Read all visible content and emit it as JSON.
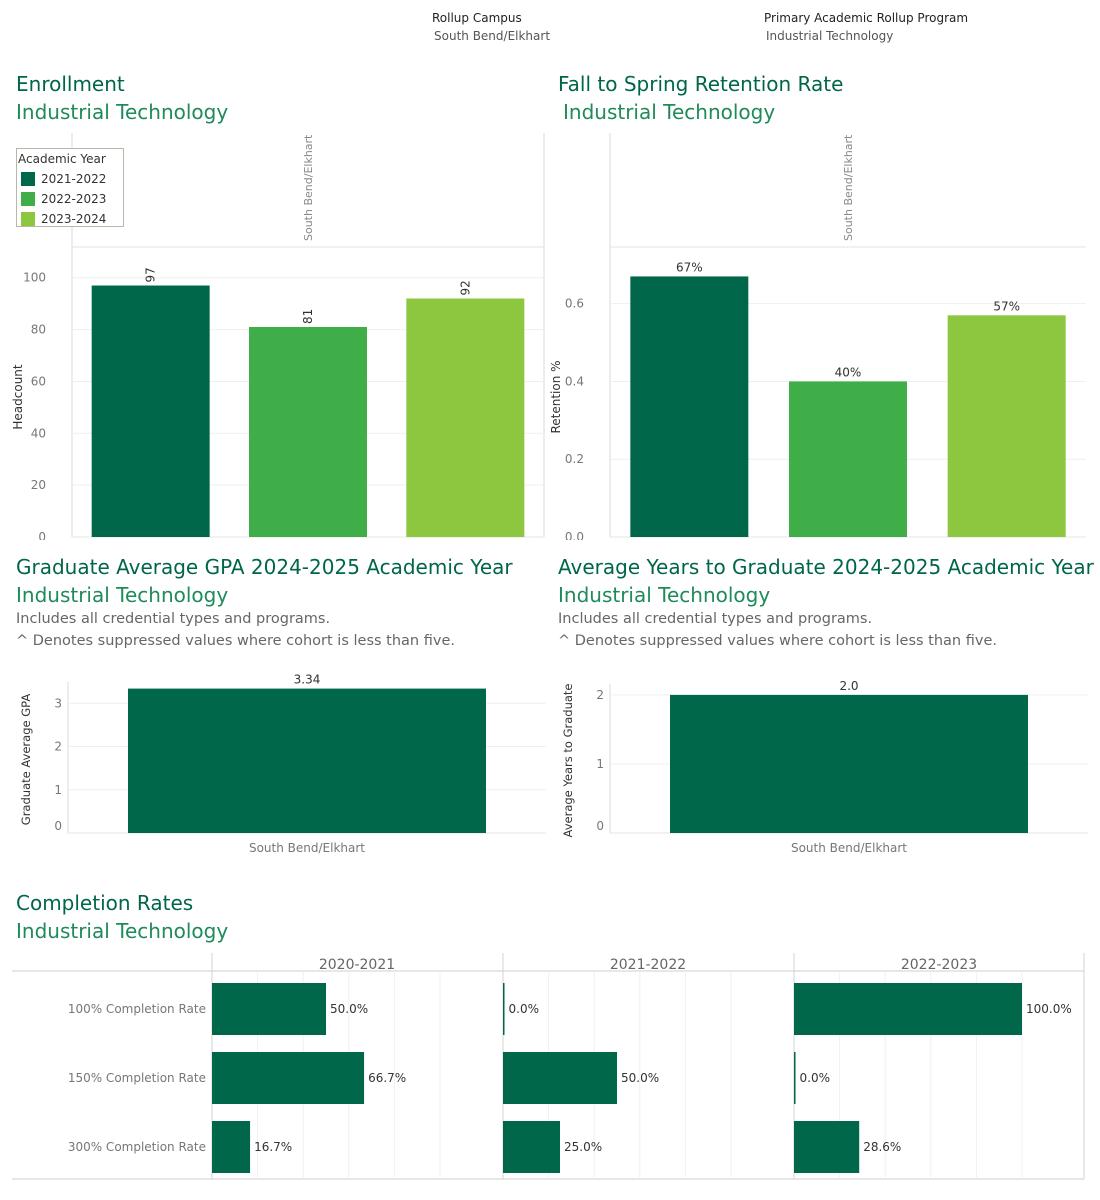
{
  "filters": {
    "campus_label": "Rollup Campus",
    "campus_value": "South Bend/Elkhart",
    "program_label": "Primary Academic Rollup Program",
    "program_value": "Industrial Technology"
  },
  "colors": {
    "dark": "#00674a",
    "mid": "#3fae49",
    "light": "#8dc63f",
    "title": "#00664a",
    "subtitle": "#1f8a5a"
  },
  "enrollment": {
    "title": "Enrollment",
    "subtitle": "Industrial Technology",
    "legend_title": "Academic Year",
    "legend": [
      "2021-2022",
      "2022-2023",
      "2023-2024"
    ]
  },
  "retention": {
    "title": "Fall to Spring Retention Rate",
    "subtitle": "Industrial Technology"
  },
  "gpa": {
    "title": "Graduate Average GPA 2024-2025 Academic Year",
    "subtitle": "Industrial Technology",
    "note1": "Includes all credential types and programs.",
    "note2": "^ Denotes suppressed values where cohort is less than five."
  },
  "years": {
    "title": "Average Years to Graduate 2024-2025 Academic Year",
    "subtitle": "Industrial Technology",
    "note1": "Includes all credential types and programs.",
    "note2": "^ Denotes suppressed values where cohort is less than five."
  },
  "completion": {
    "title": "Completion Rates",
    "subtitle": "Industrial Technology"
  },
  "chart_data": [
    {
      "id": "enrollment",
      "type": "bar",
      "column_header": "South Bend/Elkhart",
      "categories": [
        "2021-2022",
        "2022-2023",
        "2023-2024"
      ],
      "values": [
        97,
        81,
        92
      ],
      "labels": [
        "97",
        "81",
        "92"
      ],
      "ylabel": "Headcount",
      "ylim": [
        0,
        108
      ],
      "yticks": [
        0,
        20,
        40,
        60,
        80,
        100
      ],
      "legend_position": "top-left",
      "grid": true
    },
    {
      "id": "retention",
      "type": "bar",
      "column_header": "South Bend/Elkhart",
      "categories": [
        "2021-2022",
        "2022-2023",
        "2023-2024"
      ],
      "values": [
        0.67,
        0.4,
        0.57
      ],
      "labels": [
        "67%",
        "40%",
        "57%"
      ],
      "ylabel": "Retention %",
      "ylim": [
        0,
        0.72
      ],
      "yticks": [
        0.0,
        0.2,
        0.4,
        0.6
      ],
      "ytick_labels": [
        "0.0",
        "0.2",
        "0.4",
        "0.6"
      ],
      "grid": true
    },
    {
      "id": "gpa",
      "type": "bar",
      "categories": [
        "South Bend/Elkhart"
      ],
      "values": [
        3.34
      ],
      "labels": [
        "3.34"
      ],
      "ylabel": "Graduate Average GPA",
      "ylim": [
        0,
        3.4
      ],
      "yticks": [
        0,
        1,
        2,
        3
      ],
      "grid": true
    },
    {
      "id": "years",
      "type": "bar",
      "categories": [
        "South Bend/Elkhart"
      ],
      "values": [
        2.0
      ],
      "labels": [
        "2.0"
      ],
      "ylabel": "Average Years to Graduate",
      "ylim": [
        0,
        2.1
      ],
      "yticks": [
        0,
        1,
        2
      ],
      "grid": true
    },
    {
      "id": "completion",
      "type": "bar",
      "orientation": "horizontal",
      "columns": [
        "2020-2021",
        "2021-2022",
        "2022-2023"
      ],
      "rows": [
        "100% Completion Rate",
        "150% Completion Rate",
        "300% Completion Rate"
      ],
      "values": [
        [
          50.0,
          66.7,
          16.7
        ],
        [
          0.0,
          50.0,
          25.0
        ],
        [
          100.0,
          0.0,
          28.6
        ]
      ],
      "labels": [
        [
          "50.0%",
          "66.7%",
          "16.7%"
        ],
        [
          "0.0%",
          "50.0%",
          "25.0%"
        ],
        [
          "100.0%",
          "0.0%",
          "28.6%"
        ]
      ],
      "xlim": [
        0,
        120
      ],
      "grid": true
    }
  ]
}
